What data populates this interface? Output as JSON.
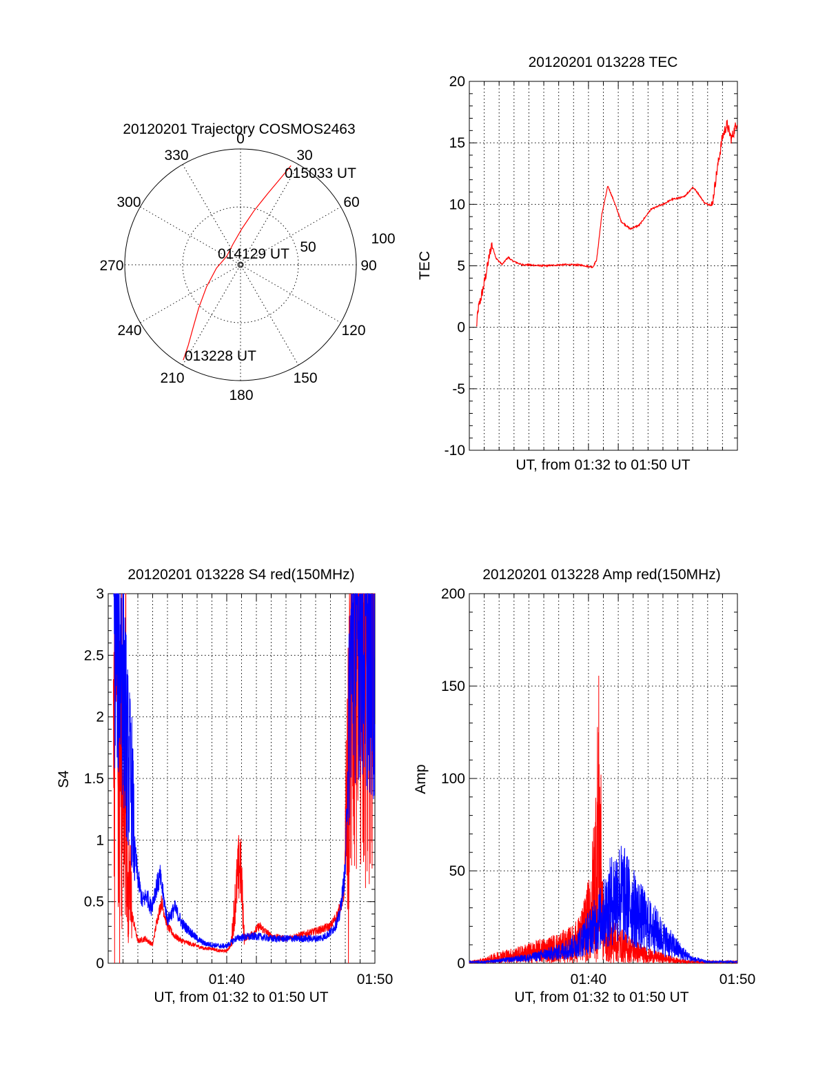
{
  "colors": {
    "red": "#ff0000",
    "blue": "#0000ff",
    "axis": "#000000"
  },
  "chart_data": [
    {
      "id": "trajectory",
      "type": "scatter",
      "title": "20120201 Trajectory COSMOS2463",
      "coordinate_system": "polar",
      "azimuth_labels": [
        "0",
        "30",
        "60",
        "90",
        "120",
        "150",
        "180",
        "210",
        "240",
        "270",
        "300",
        "330"
      ],
      "ring_labels": [
        "50",
        "100"
      ],
      "rlim": [
        0,
        100
      ],
      "grid": true,
      "series": [
        {
          "color": "#ff0000",
          "points": [
            {
              "az": 211,
              "r": 96
            },
            {
              "az": 213,
              "r": 83
            },
            {
              "az": 217,
              "r": 68
            },
            {
              "az": 224,
              "r": 52
            },
            {
              "az": 237,
              "r": 35
            },
            {
              "az": 262,
              "r": 21
            },
            {
              "az": 302,
              "r": 14
            },
            {
              "az": 340,
              "r": 19
            },
            {
              "az": 2,
              "r": 31
            },
            {
              "az": 14,
              "r": 48
            },
            {
              "az": 21,
              "r": 66
            },
            {
              "az": 25,
              "r": 83
            },
            {
              "az": 27,
              "r": 96
            }
          ]
        }
      ],
      "annotations": [
        {
          "text": "015033 UT",
          "az": 27,
          "r": 96
        },
        {
          "text": "014129 UT",
          "az": 0,
          "r": 0
        },
        {
          "text": "013228 UT",
          "az": 211,
          "r": 96
        }
      ]
    },
    {
      "id": "tec",
      "type": "line",
      "title": "20120201 013228 TEC",
      "xlabel": "UT, from 01:32 to 01:50 UT",
      "ylabel": "TEC",
      "xlim": [
        0,
        18
      ],
      "ylim": [
        -10,
        20
      ],
      "yticks": [
        -10,
        -5,
        0,
        5,
        10,
        15,
        20
      ],
      "xtick_labels": [],
      "grid": true,
      "series": [
        {
          "color": "#ff0000",
          "x": [
            0.48,
            0.6,
            0.9,
            1.1,
            1.3,
            1.5,
            1.6,
            1.8,
            2.2,
            2.6,
            2.9,
            3.5,
            5,
            6.5,
            7.5,
            8.3,
            8.55,
            8.9,
            9.3,
            9.7,
            10.2,
            10.8,
            11.4,
            12.2,
            13,
            13.6,
            14.4,
            14.8,
            15,
            15.3,
            15.8,
            16.3,
            16.6,
            17,
            17.3,
            17.6,
            18
          ],
          "y": [
            0,
            1.5,
            3,
            4.2,
            5.5,
            6.8,
            6.4,
            5.6,
            5.1,
            5.7,
            5.4,
            5.1,
            5.0,
            5.1,
            5.05,
            4.9,
            5.5,
            9.2,
            11.5,
            10.3,
            8.6,
            8.0,
            8.3,
            9.6,
            10,
            10.4,
            10.6,
            11.1,
            11.4,
            11.0,
            10.1,
            9.9,
            12.5,
            15.5,
            16.5,
            15.3,
            16.8
          ]
        }
      ]
    },
    {
      "id": "s4",
      "type": "line",
      "title": "20120201 013228 S4 red(150MHz)",
      "xlabel": "UT, from 01:32 to 01:50 UT",
      "ylabel": "S4",
      "xlim": [
        0,
        18
      ],
      "ylim": [
        0,
        3
      ],
      "yticks": [
        "0",
        "0.5",
        "1",
        "1.5",
        "2",
        "2.5",
        "3"
      ],
      "xtick_labels": [
        {
          "at": 8,
          "label": "01:40"
        },
        {
          "at": 18,
          "label": "01:50"
        }
      ],
      "grid": true,
      "series": [
        {
          "color": "#ff0000",
          "x": [
            0.5,
            0.7,
            1.0,
            1.3,
            1.6,
            2.0,
            2.5,
            3.0,
            3.3,
            3.6,
            4.0,
            4.5,
            5.0,
            5.5,
            6.0,
            6.5,
            7.0,
            7.5,
            8.0,
            8.3,
            8.6,
            8.9,
            9.2,
            9.5,
            9.8,
            10.2,
            11,
            12,
            13,
            14,
            15,
            15.5,
            15.9,
            16.2,
            16.5,
            17,
            17.5,
            17.9
          ],
          "y": [
            2.2,
            1.6,
            1.2,
            0.9,
            0.4,
            0.18,
            0.2,
            0.15,
            0.35,
            0.5,
            0.3,
            0.22,
            0.18,
            0.16,
            0.14,
            0.12,
            0.12,
            0.1,
            0.1,
            0.15,
            0.55,
            0.85,
            0.2,
            0.22,
            0.25,
            0.3,
            0.22,
            0.2,
            0.23,
            0.26,
            0.3,
            0.4,
            0.55,
            1.5,
            2.6,
            2.3,
            2.5,
            2.4
          ]
        },
        {
          "color": "#0000ff",
          "x": [
            0.5,
            0.7,
            0.9,
            1.1,
            1.3,
            1.6,
            1.8,
            2.0,
            2.3,
            2.6,
            2.9,
            3.2,
            3.5,
            4.0,
            4.5,
            5.0,
            5.5,
            6.0,
            6.5,
            7.0,
            7.5,
            8.0,
            8.3,
            8.6,
            9,
            10,
            11,
            12,
            13,
            14,
            14.5,
            15,
            15.3,
            15.6,
            16,
            16.4,
            17,
            17.5,
            17.9
          ],
          "y": [
            2.8,
            2.6,
            2.5,
            2.1,
            1.7,
            1.4,
            0.9,
            0.7,
            0.5,
            0.55,
            0.45,
            0.6,
            0.7,
            0.35,
            0.45,
            0.32,
            0.26,
            0.2,
            0.16,
            0.15,
            0.14,
            0.14,
            0.17,
            0.2,
            0.21,
            0.22,
            0.2,
            0.2,
            0.2,
            0.2,
            0.21,
            0.25,
            0.3,
            0.38,
            0.75,
            2.6,
            2.7,
            2.5,
            2.3
          ]
        }
      ]
    },
    {
      "id": "amp",
      "type": "line",
      "title": "20120201 013228 Amp red(150MHz)",
      "xlabel": "UT, from 01:32 to 01:50 UT",
      "ylabel": "Amp",
      "xlim": [
        0,
        18
      ],
      "ylim": [
        0,
        200
      ],
      "yticks": [
        "0",
        "50",
        "100",
        "150",
        "200"
      ],
      "xtick_labels": [
        {
          "at": 8,
          "label": "01:40"
        },
        {
          "at": 18,
          "label": "01:50"
        }
      ],
      "grid": true,
      "series": [
        {
          "color": "#ff0000",
          "x": [
            0,
            1,
            2,
            3,
            4,
            5,
            6,
            7,
            7.5,
            7.8,
            8.1,
            8.4,
            8.7,
            9,
            9.3,
            9.6,
            10,
            10.5,
            11,
            11.5,
            12,
            12.5,
            13,
            13.5,
            14,
            15,
            16,
            17,
            18
          ],
          "y": [
            1,
            2,
            5,
            6,
            8,
            10,
            12,
            15,
            20,
            28,
            35,
            60,
            115,
            25,
            20,
            18,
            15,
            12,
            10,
            8,
            6,
            5,
            4,
            3,
            2,
            1,
            1,
            1,
            1
          ]
        },
        {
          "color": "#0000ff",
          "x": [
            0,
            1,
            2,
            3,
            4,
            5,
            6,
            7,
            7.5,
            8,
            8.5,
            9,
            9.5,
            10,
            10.5,
            11,
            11.5,
            12,
            12.5,
            13,
            13.5,
            14,
            14.5,
            15,
            15.5,
            16,
            17,
            18
          ],
          "y": [
            1,
            1,
            2,
            3,
            4,
            6,
            8,
            12,
            16,
            22,
            28,
            35,
            45,
            52,
            48,
            40,
            34,
            28,
            24,
            18,
            14,
            10,
            6,
            3,
            2,
            1,
            1,
            1
          ]
        }
      ]
    }
  ]
}
